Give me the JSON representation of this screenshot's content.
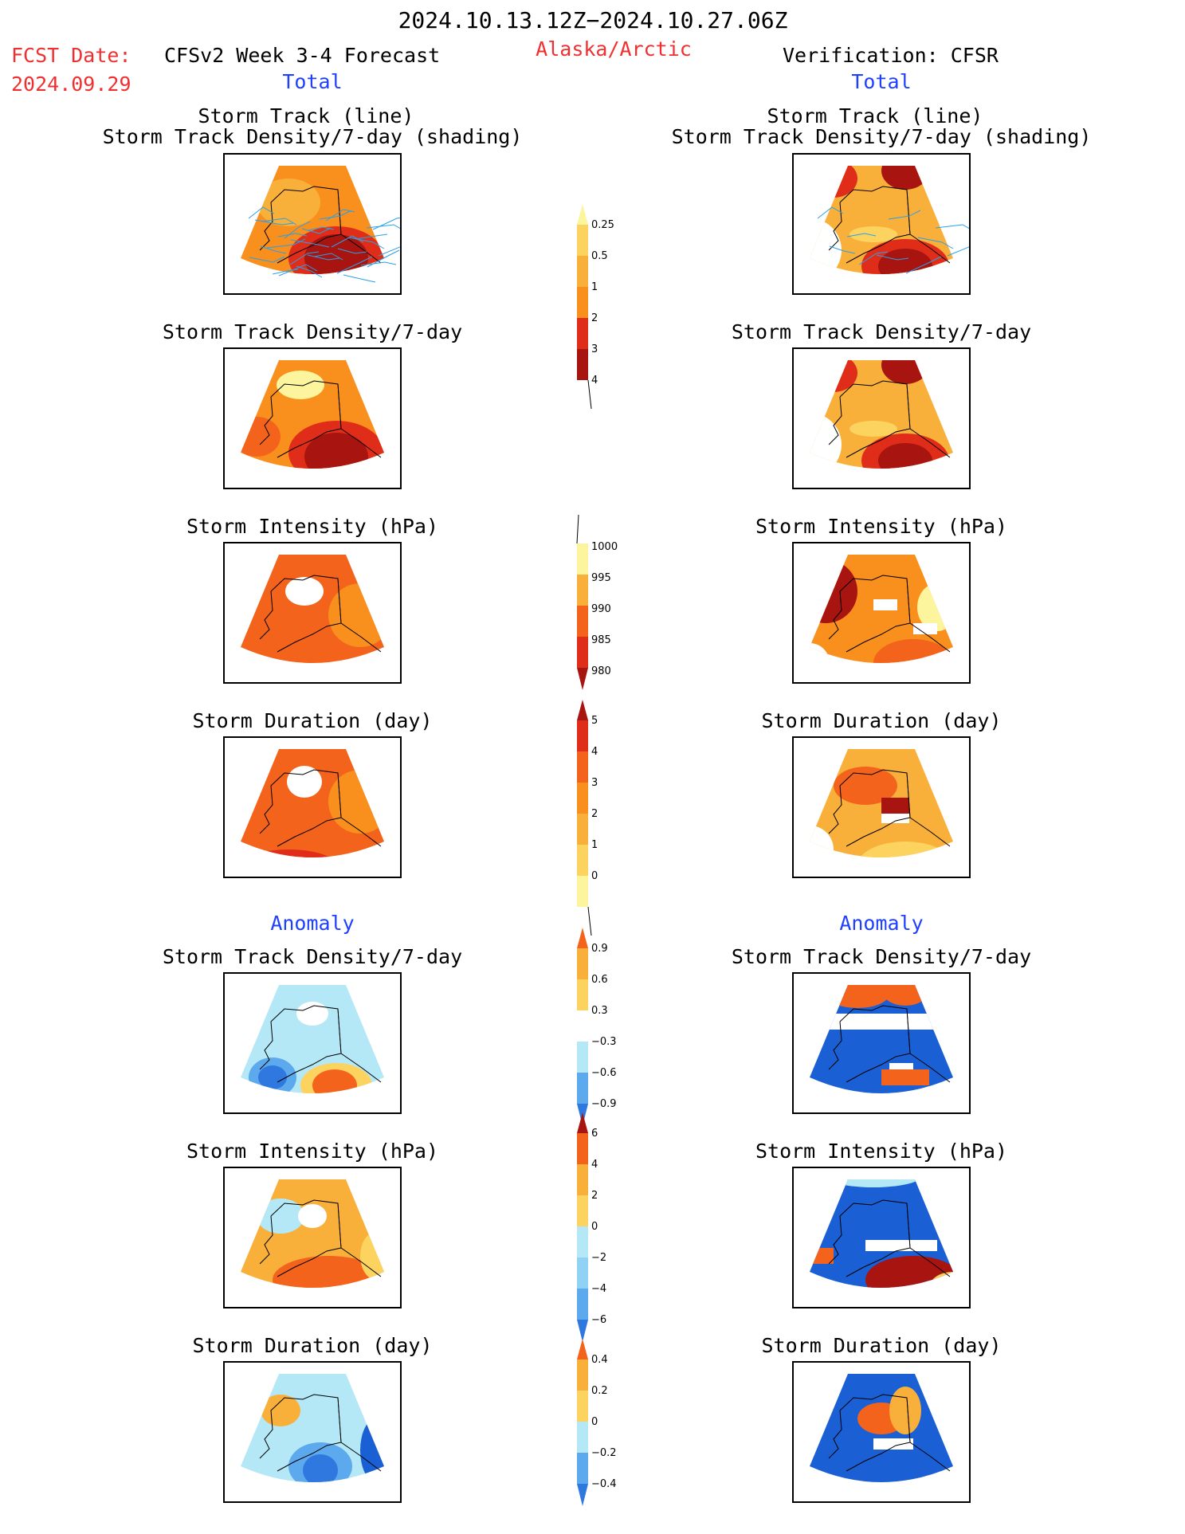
{
  "header": {
    "period": "2024.10.13.12Z−2024.10.27.06Z",
    "fcst_label": "FCST Date:",
    "fcst_date": "2024.09.29",
    "model": "CFSv2 Week 3-4 Forecast",
    "region": "Alaska/Arctic",
    "verification": "Verification: CFSR",
    "total_left": "Total",
    "total_right": "Total"
  },
  "panel_titles": {
    "track_line": "Storm Track (line)",
    "track_density_shading": "Storm Track Density/7-day (shading)",
    "track_density": "Storm Track Density/7-day",
    "intensity": "Storm Intensity (hPa)",
    "duration": "Storm Duration (day)",
    "anomaly": "Anomaly"
  },
  "colors": {
    "lyellow": "#fdf59d",
    "yellow": "#fbd35e",
    "lorange": "#f9b03a",
    "orange": "#f98f1d",
    "dorange": "#f4631c",
    "red": "#e02d1a",
    "dred": "#a8140f",
    "lblue": "#b5e8f7",
    "blue1": "#90d2f4",
    "blue2": "#5da9ee",
    "blue3": "#2f78e0",
    "dblue": "#1a5fd4",
    "track": "#2aa0e8"
  },
  "chart_data": [
    {
      "type": "heatmap",
      "title": "Storm Track Density/7-day",
      "unit": "",
      "colorbar_ticks": [
        "0.25",
        "0.5",
        "1",
        "2",
        "3",
        "4"
      ],
      "colorbar_colors": [
        "#fdf59d",
        "#fbd35e",
        "#f9b03a",
        "#f98f1d",
        "#e02d1a",
        "#a8140f"
      ]
    },
    {
      "type": "heatmap",
      "title": "Storm Intensity (hPa)",
      "unit": "hPa",
      "colorbar_ticks": [
        "1000",
        "995",
        "990",
        "985",
        "980"
      ],
      "colorbar_colors": [
        "#fdf59d",
        "#f9b03a",
        "#f4631c",
        "#e02d1a",
        "#a8140f"
      ]
    },
    {
      "type": "heatmap",
      "title": "Storm Duration (day)",
      "unit": "day",
      "colorbar_ticks": [
        "5",
        "4",
        "3",
        "2",
        "1",
        "0"
      ],
      "colorbar_colors": [
        "#a8140f",
        "#e02d1a",
        "#f4631c",
        "#f98f1d",
        "#f9b03a",
        "#fbd35e",
        "#fdf59d"
      ]
    },
    {
      "type": "heatmap",
      "title": "Anomaly Storm Track Density/7-day",
      "colorbar_ticks": [
        "0.9",
        "0.6",
        "0.3",
        "−0.3",
        "−0.6",
        "−0.9"
      ],
      "colorbar_colors": [
        "#f4631c",
        "#f9b03a",
        "#fbd35e",
        "#ffffff",
        "#b5e8f7",
        "#5da9ee",
        "#2f78e0"
      ]
    },
    {
      "type": "heatmap",
      "title": "Anomaly Storm Intensity (hPa)",
      "colorbar_ticks": [
        "6",
        "4",
        "2",
        "0",
        "−2",
        "−4",
        "−6"
      ],
      "colorbar_colors": [
        "#a8140f",
        "#f4631c",
        "#f9b03a",
        "#fbd35e",
        "#b5e8f7",
        "#90d2f4",
        "#5da9ee",
        "#2f78e0"
      ]
    },
    {
      "type": "heatmap",
      "title": "Anomaly Storm Duration (day)",
      "colorbar_ticks": [
        "0.4",
        "0.2",
        "0",
        "−0.2",
        "−0.4"
      ],
      "colorbar_colors": [
        "#f4631c",
        "#f9b03a",
        "#fbd35e",
        "#b5e8f7",
        "#5da9ee",
        "#2f78e0"
      ]
    }
  ]
}
